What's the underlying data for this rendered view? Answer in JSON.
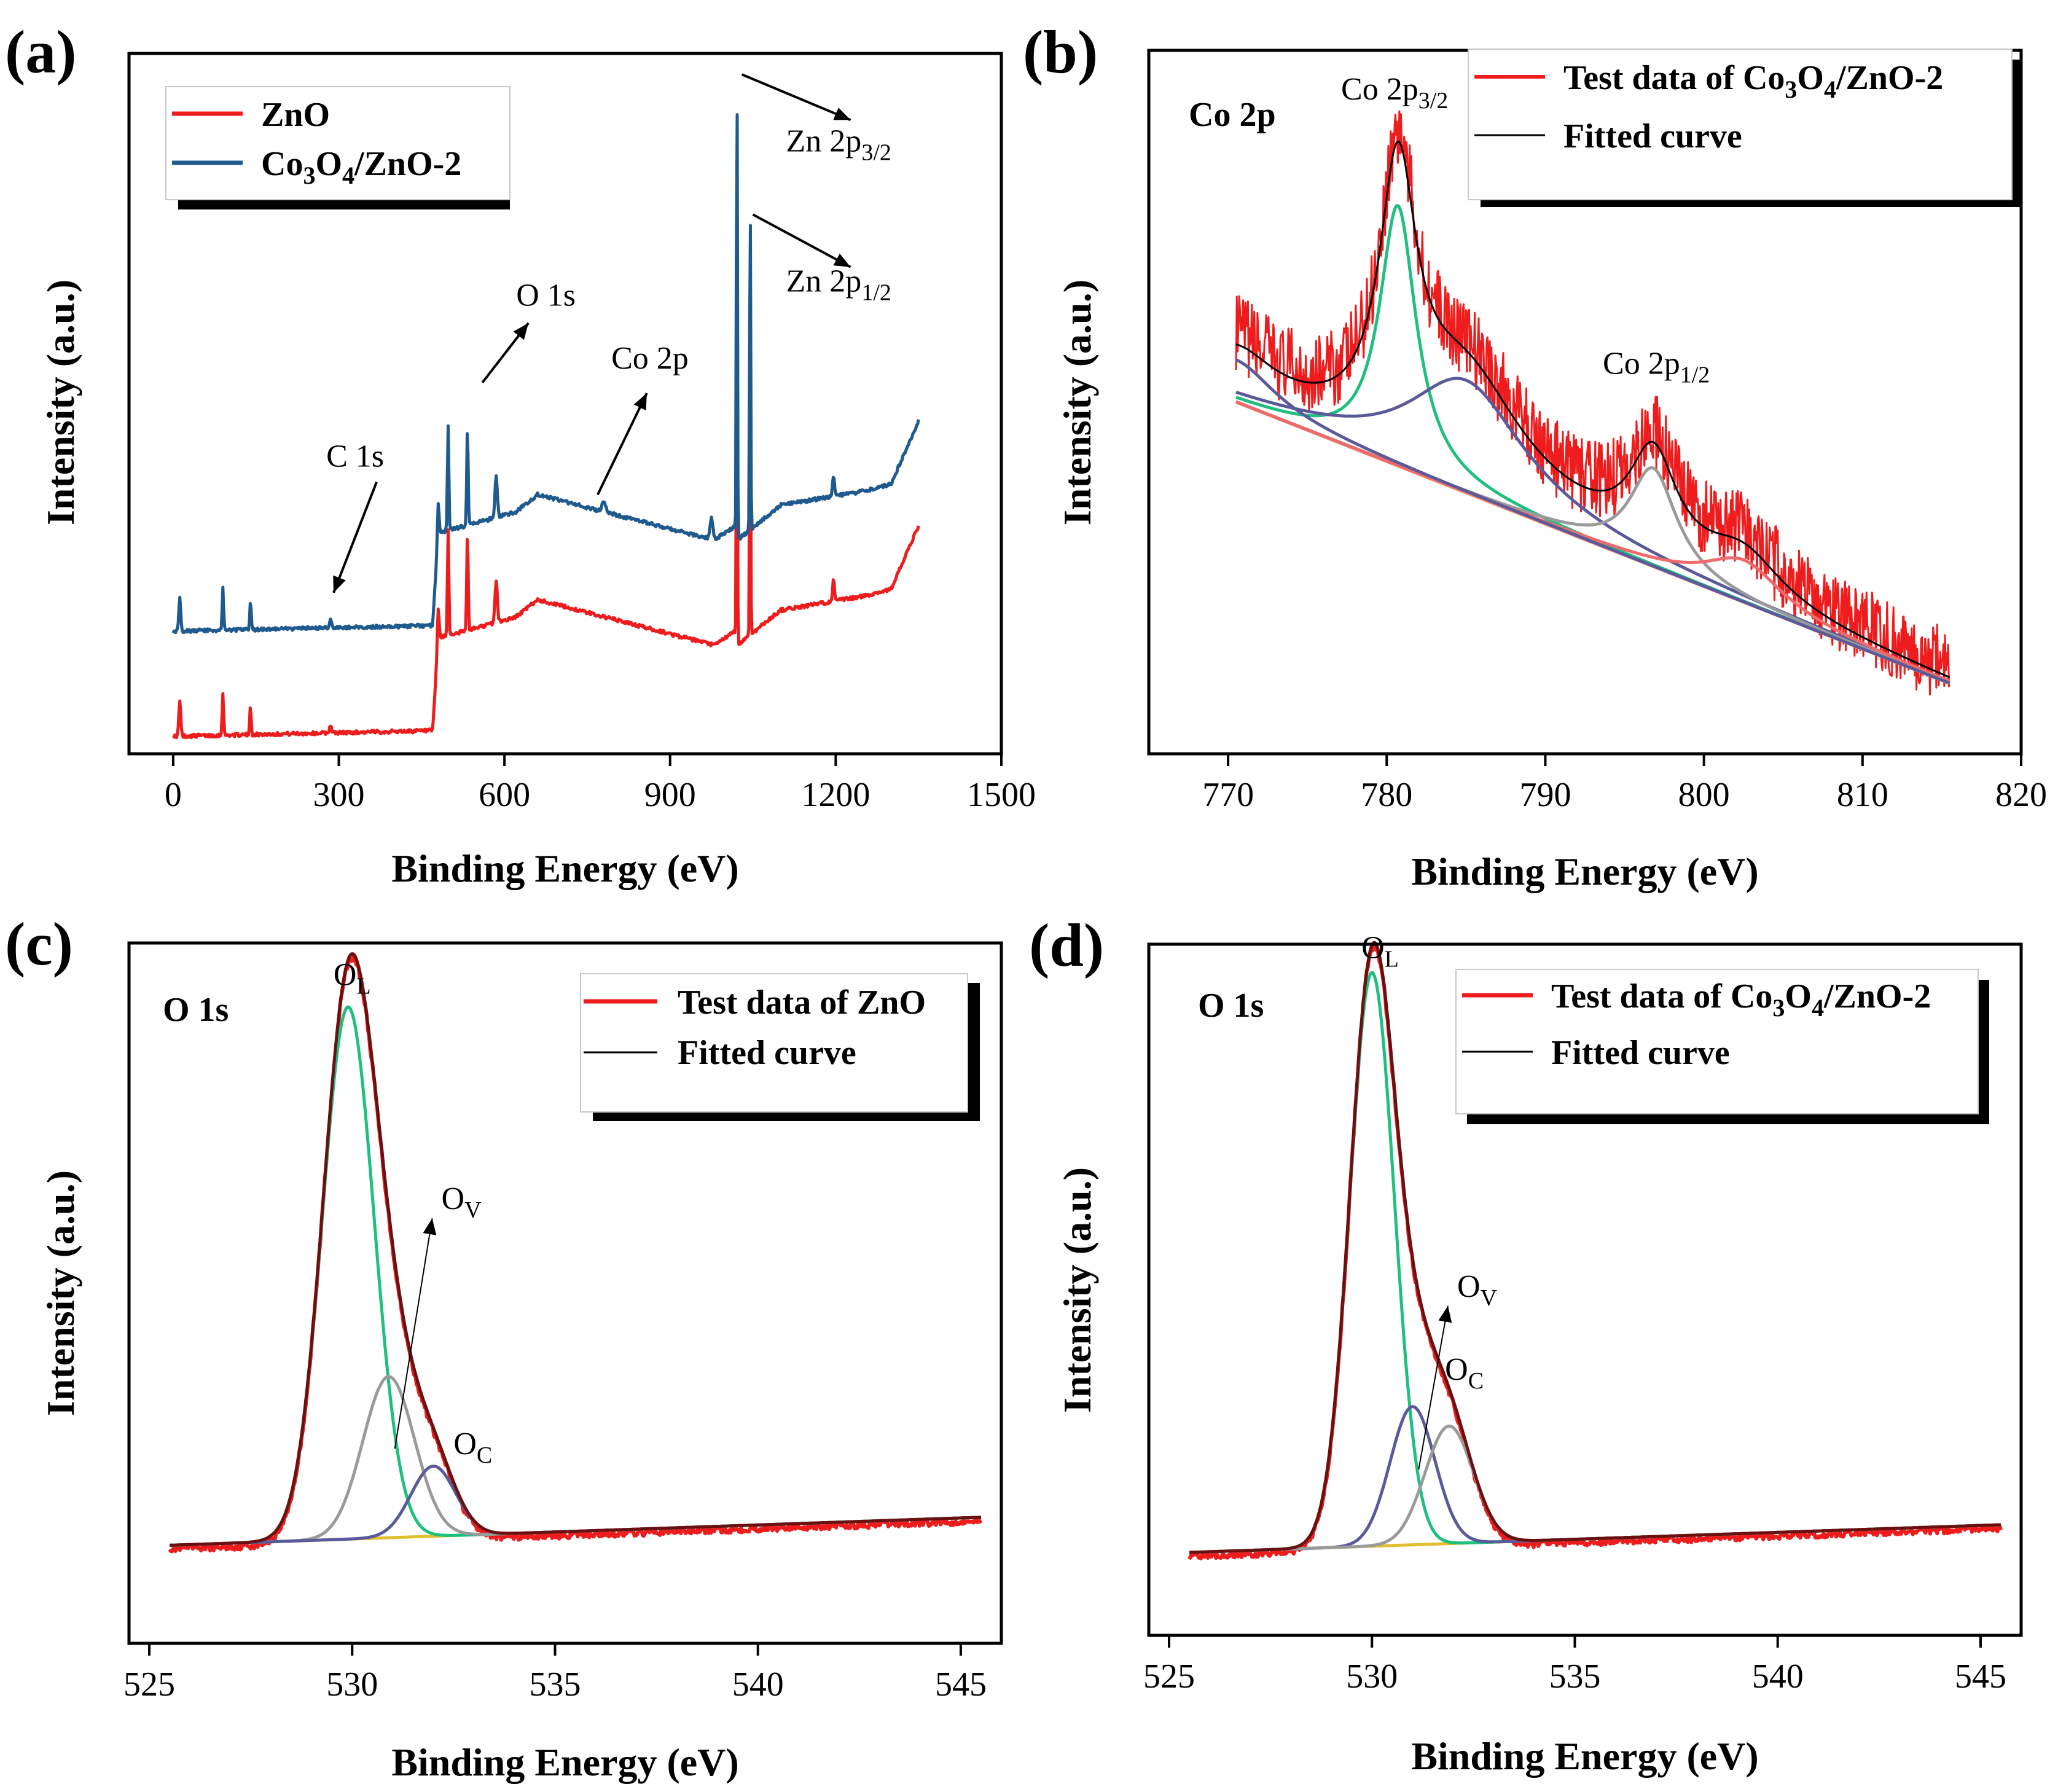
{
  "colors": {
    "raw": "#ee1c1c",
    "blue_series": "#1f5a8e",
    "fit": "#000000",
    "green": "#1fbf7f",
    "gray": "#9a9a9a",
    "navy": "#5a5a9a",
    "pink": "#ee6a6a",
    "baseline": "#e0c030",
    "salmon": "#f28a70",
    "legend_shadow": "#000000"
  },
  "panels": {
    "a": {
      "letter": "(a)"
    },
    "b": {
      "letter": "(b)"
    },
    "c": {
      "letter": "(c)"
    },
    "d": {
      "letter": "(d)"
    }
  },
  "chart_data": [
    {
      "id": "a",
      "type": "line",
      "xlabel": "Binding Energy (eV)",
      "ylabel": "Intensity (a.u.)",
      "xlim": [
        -80,
        1500
      ],
      "ylim": [
        0,
        100
      ],
      "xticks": [
        0,
        300,
        600,
        900,
        1200,
        1500
      ],
      "legend": {
        "position": "top-left",
        "entries": [
          {
            "label": "ZnO",
            "color_key": "raw"
          },
          {
            "label_main": "Co",
            "sub1": "3",
            "mid": "O",
            "sub2": "4",
            "tail": "/ZnO-2",
            "color_key": "blue_series"
          }
        ]
      },
      "series": [
        {
          "name": "ZnO",
          "color_key": "raw",
          "offset": 2.5,
          "baseline_points": [
            [
              0,
              0
            ],
            [
              470,
              0.8
            ],
            [
              480,
              14
            ],
            [
              620,
              17
            ],
            [
              660,
              19.5
            ],
            [
              980,
              13
            ],
            [
              1018,
              15
            ],
            [
              1022,
              13
            ],
            [
              1100,
              18
            ],
            [
              1250,
              20
            ],
            [
              1300,
              21
            ],
            [
              1350,
              30
            ]
          ],
          "peaks": [
            [
              12,
              5,
              4
            ],
            [
              90,
              6,
              3
            ],
            [
              140,
              4,
              3
            ],
            [
              285,
              1.2,
              4
            ],
            [
              480,
              4,
              4
            ],
            [
              498,
              15,
              3
            ],
            [
              533,
              14,
              3
            ],
            [
              585,
              6,
              5
            ],
            [
              1021,
              50,
              2.2
            ],
            [
              1045,
              42,
              2.2
            ],
            [
              1196,
              3,
              4
            ]
          ]
        },
        {
          "name": "Co3O4/ZnO-2",
          "color_key": "blue_series",
          "offset": 17.5,
          "baseline_points": [
            [
              0,
              0
            ],
            [
              470,
              0.8
            ],
            [
              480,
              14
            ],
            [
              620,
              17
            ],
            [
              660,
              19.5
            ],
            [
              980,
              13
            ],
            [
              1018,
              15
            ],
            [
              1022,
              13
            ],
            [
              1100,
              18
            ],
            [
              1250,
              20
            ],
            [
              1300,
              21
            ],
            [
              1350,
              30
            ]
          ],
          "peaks": [
            [
              12,
              5,
              4
            ],
            [
              90,
              6,
              3
            ],
            [
              140,
              4,
              3
            ],
            [
              285,
              1.2,
              4
            ],
            [
              480,
              4,
              4
            ],
            [
              498,
              15,
              3
            ],
            [
              533,
              14,
              3
            ],
            [
              585,
              6,
              5
            ],
            [
              780,
              1.6,
              8
            ],
            [
              975,
              3,
              6
            ],
            [
              1021,
              70,
              2.2
            ],
            [
              1045,
              50,
              2.2
            ],
            [
              1196,
              3,
              4
            ]
          ]
        }
      ],
      "annotations": [
        {
          "text": "C 1s",
          "x": 285,
          "y": 41
        },
        {
          "text": "O 1s",
          "x": 560,
          "y": 64
        },
        {
          "text": "Co 2p",
          "x": 780,
          "y": 55
        },
        {
          "main": "Zn 2p",
          "sub": "3/2",
          "x": 1060,
          "y": 86
        },
        {
          "main": "Zn 2p",
          "sub": "1/2",
          "x": 1060,
          "y": 66
        }
      ]
    },
    {
      "id": "b",
      "type": "line",
      "xlabel": "Binding Energy (eV)",
      "ylabel": "Intensity (a.u.)",
      "xlim": [
        765,
        820
      ],
      "ylim": [
        0,
        100
      ],
      "xticks": [
        770,
        780,
        790,
        800,
        810,
        820
      ],
      "corner_label": "Co 2p",
      "legend": {
        "position": "top-right",
        "entries": [
          {
            "label_main": "Test data of Co",
            "sub1": "3",
            "mid": "O",
            "sub2": "4",
            "tail": "/ZnO-2",
            "color_key": "raw"
          },
          {
            "label": "Fitted curve",
            "color_key": "fit"
          }
        ]
      },
      "baseline": {
        "x0": 770.5,
        "y0": 50,
        "x1": 815.5,
        "y1": 10
      },
      "fit_peaks": [
        {
          "name": "Co 2p3/2 main",
          "center": 780.7,
          "height": 37,
          "fwhm": 2.8,
          "color_key": "green"
        },
        {
          "name": "Co 2p3/2 satellite",
          "center": 785,
          "height": 16,
          "fwhm": 9,
          "color_key": "navy"
        },
        {
          "name": "Co 2p1/2 main",
          "center": 796.8,
          "height": 14,
          "fwhm": 3.6,
          "color_key": "gray"
        },
        {
          "name": "Co 2p1/2 satellite",
          "center": 802.5,
          "height": 6,
          "fwhm": 6,
          "color_key": "pink"
        },
        {
          "name": "low-energy shoulder",
          "center": 770.5,
          "height": 6,
          "fwhm": 6,
          "color_key": "navy"
        }
      ],
      "annotations": [
        {
          "main": "Co 2p",
          "sub": "3/2",
          "x": 780.5,
          "y": 93
        },
        {
          "main": "Co 2p",
          "sub": "1/2",
          "x": 797.0,
          "y": 54
        }
      ]
    },
    {
      "id": "c",
      "type": "line",
      "xlabel": "Binding Energy (eV)",
      "ylabel": "Intensity (a.u.)",
      "xlim": [
        524.5,
        546
      ],
      "ylim": [
        0,
        100
      ],
      "xticks": [
        525,
        530,
        535,
        540,
        545
      ],
      "corner_label": "O 1s",
      "legend": {
        "position": "top-right",
        "entries": [
          {
            "label": "Test data of ZnO",
            "color_key": "raw"
          },
          {
            "label": "Fitted curve",
            "color_key": "fit"
          }
        ]
      },
      "baseline": {
        "x0": 525.5,
        "y0": 14,
        "x1": 545.5,
        "y1": 18
      },
      "fit_peaks": [
        {
          "name": "O_L",
          "center": 529.9,
          "height": 76,
          "fwhm": 1.5,
          "color_key": "green"
        },
        {
          "name": "O_V",
          "center": 530.9,
          "height": 23,
          "fwhm": 1.5,
          "color_key": "gray"
        },
        {
          "name": "O_C",
          "center": 532.0,
          "height": 10,
          "fwhm": 1.3,
          "color_key": "navy"
        }
      ],
      "annotations": [
        {
          "main": "O",
          "sub": "L",
          "x": 530.0,
          "y": 94
        },
        {
          "main": "O",
          "sub": "V",
          "x": 532.2,
          "y": 62
        },
        {
          "main": "O",
          "sub": "C",
          "x": 532.5,
          "y": 27
        }
      ]
    },
    {
      "id": "d",
      "type": "line",
      "xlabel": "Binding Energy (eV)",
      "ylabel": "Intensity (a.u.)",
      "xlim": [
        524.5,
        546
      ],
      "ylim": [
        0,
        100
      ],
      "xticks": [
        525,
        530,
        535,
        540,
        545
      ],
      "corner_label": "O 1s",
      "legend": {
        "position": "top-right",
        "entries": [
          {
            "label_main": "Test data of Co",
            "sub1": "3",
            "mid": "O",
            "sub2": "4",
            "tail": "/ZnO-2",
            "color_key": "raw"
          },
          {
            "label": "Fitted curve",
            "color_key": "fit"
          }
        ]
      },
      "baseline": {
        "x0": 525.5,
        "y0": 12,
        "x1": 545.5,
        "y1": 16
      },
      "fit_peaks": [
        {
          "name": "O_L",
          "center": 530.0,
          "height": 83,
          "fwhm": 1.3,
          "color_key": "green"
        },
        {
          "name": "O_V",
          "center": 531.0,
          "height": 20,
          "fwhm": 1.3,
          "color_key": "navy"
        },
        {
          "name": "O_C",
          "center": 531.9,
          "height": 17,
          "fwhm": 1.4,
          "color_key": "gray"
        }
      ],
      "annotations": [
        {
          "main": "O",
          "sub": "L",
          "x": 530.2,
          "y": 98
        },
        {
          "main": "O",
          "sub": "V",
          "x": 532.1,
          "y": 49
        },
        {
          "main": "O",
          "sub": "C",
          "x": 531.8,
          "y": 37
        }
      ]
    }
  ]
}
